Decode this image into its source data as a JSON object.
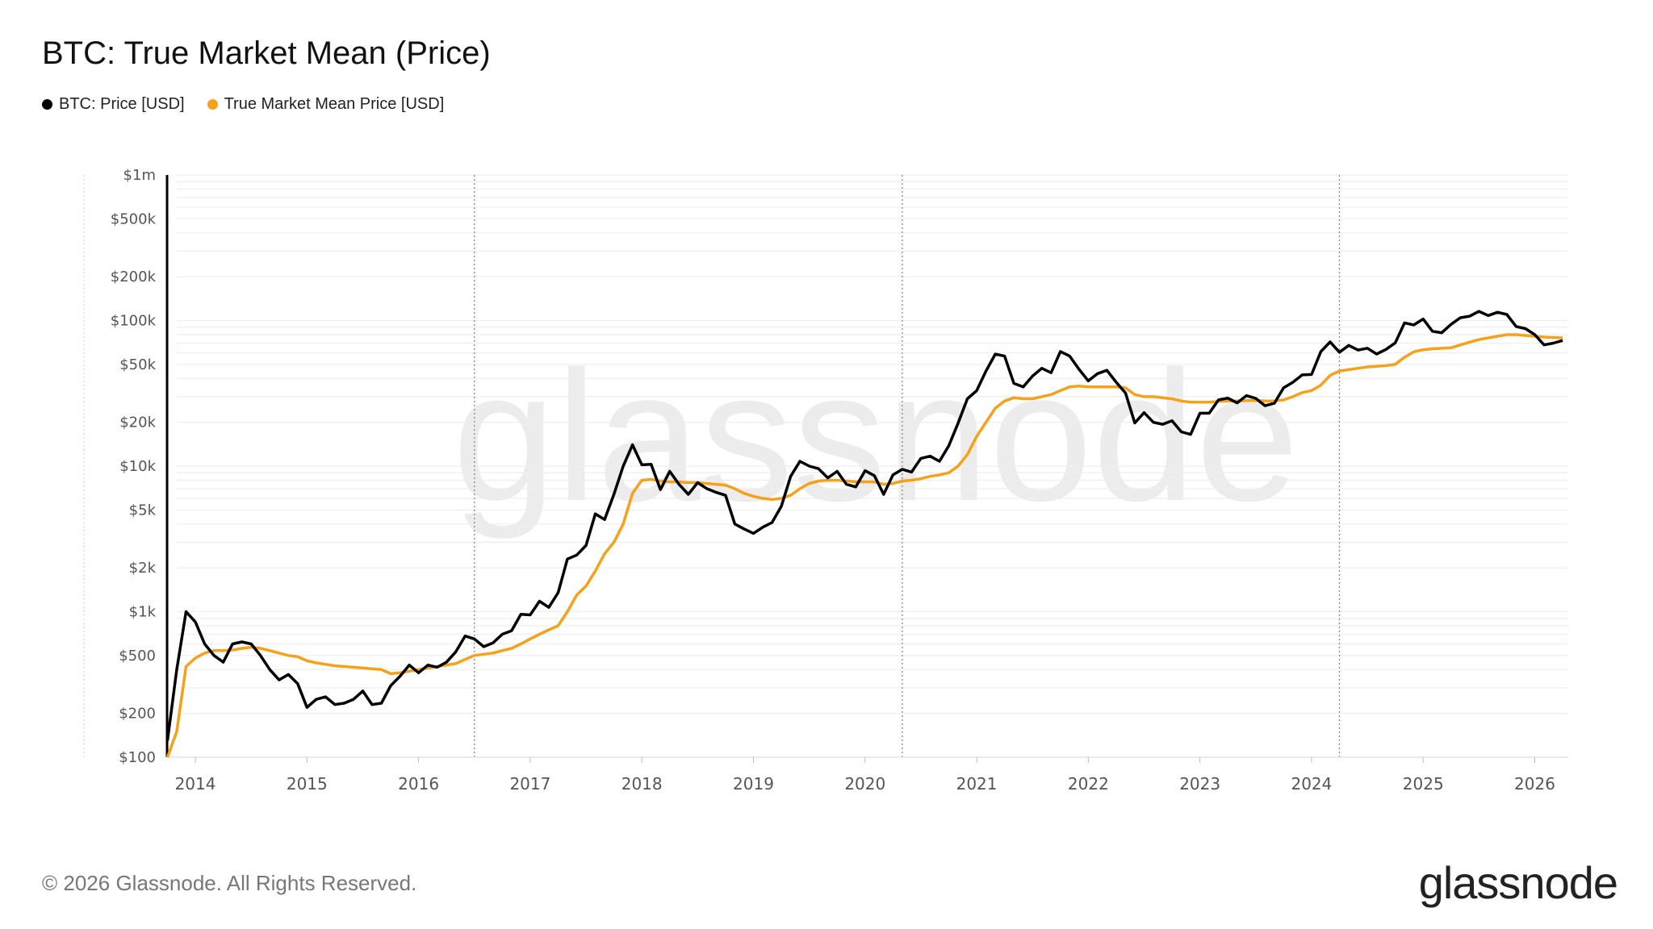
{
  "chart_data": {
    "type": "line",
    "title": "BTC: True Market Mean (Price)",
    "yscale": "log",
    "ylim": [
      100,
      1000000
    ],
    "xlim": [
      "2013-09",
      "2026-04"
    ],
    "grid": true,
    "legend_placement": "top-left",
    "y_ticks": [
      {
        "v": 1000000,
        "label": "$1m"
      },
      {
        "v": 500000,
        "label": "$500k"
      },
      {
        "v": 200000,
        "label": "$200k"
      },
      {
        "v": 100000,
        "label": "$100k"
      },
      {
        "v": 50000,
        "label": "$50k"
      },
      {
        "v": 20000,
        "label": "$20k"
      },
      {
        "v": 10000,
        "label": "$10k"
      },
      {
        "v": 5000,
        "label": "$5k"
      },
      {
        "v": 2000,
        "label": "$2k"
      },
      {
        "v": 1000,
        "label": "$1k"
      },
      {
        "v": 500,
        "label": "$500"
      },
      {
        "v": 200,
        "label": "$200"
      },
      {
        "v": 100,
        "label": "$100"
      }
    ],
    "x_ticks": [
      "2014",
      "2015",
      "2016",
      "2017",
      "2018",
      "2019",
      "2020",
      "2021",
      "2022",
      "2023",
      "2024",
      "2025",
      "2026"
    ],
    "vertical_markers": [
      "2016-07",
      "2020-05",
      "2024-04"
    ],
    "x": [
      "2013-10",
      "2013-11",
      "2013-12",
      "2014-01",
      "2014-02",
      "2014-03",
      "2014-04",
      "2014-05",
      "2014-06",
      "2014-07",
      "2014-08",
      "2014-09",
      "2014-10",
      "2014-11",
      "2014-12",
      "2015-01",
      "2015-02",
      "2015-03",
      "2015-04",
      "2015-05",
      "2015-06",
      "2015-07",
      "2015-08",
      "2015-09",
      "2015-10",
      "2015-11",
      "2015-12",
      "2016-01",
      "2016-02",
      "2016-03",
      "2016-04",
      "2016-05",
      "2016-06",
      "2016-07",
      "2016-08",
      "2016-09",
      "2016-10",
      "2016-11",
      "2016-12",
      "2017-01",
      "2017-02",
      "2017-03",
      "2017-04",
      "2017-05",
      "2017-06",
      "2017-07",
      "2017-08",
      "2017-09",
      "2017-10",
      "2017-11",
      "2017-12",
      "2018-01",
      "2018-02",
      "2018-03",
      "2018-04",
      "2018-05",
      "2018-06",
      "2018-07",
      "2018-08",
      "2018-09",
      "2018-10",
      "2018-11",
      "2018-12",
      "2019-01",
      "2019-02",
      "2019-03",
      "2019-04",
      "2019-05",
      "2019-06",
      "2019-07",
      "2019-08",
      "2019-09",
      "2019-10",
      "2019-11",
      "2019-12",
      "2020-01",
      "2020-02",
      "2020-03",
      "2020-04",
      "2020-05",
      "2020-06",
      "2020-07",
      "2020-08",
      "2020-09",
      "2020-10",
      "2020-11",
      "2020-12",
      "2021-01",
      "2021-02",
      "2021-03",
      "2021-04",
      "2021-05",
      "2021-06",
      "2021-07",
      "2021-08",
      "2021-09",
      "2021-10",
      "2021-11",
      "2021-12",
      "2022-01",
      "2022-02",
      "2022-03",
      "2022-04",
      "2022-05",
      "2022-06",
      "2022-07",
      "2022-08",
      "2022-09",
      "2022-10",
      "2022-11",
      "2022-12",
      "2023-01",
      "2023-02",
      "2023-03",
      "2023-04",
      "2023-05",
      "2023-06",
      "2023-07",
      "2023-08",
      "2023-09",
      "2023-10",
      "2023-11",
      "2023-12",
      "2024-01",
      "2024-02",
      "2024-03",
      "2024-04",
      "2024-05",
      "2024-06",
      "2024-07",
      "2024-08",
      "2024-09",
      "2024-10",
      "2024-11",
      "2024-12",
      "2025-01",
      "2025-02",
      "2025-03",
      "2025-04",
      "2025-05",
      "2025-06",
      "2025-07",
      "2025-08",
      "2025-09",
      "2025-10",
      "2025-11",
      "2025-12",
      "2026-01",
      "2026-02",
      "2026-03",
      "2026-04"
    ],
    "series": [
      {
        "name": "BTC: Price [USD]",
        "color": "#000000",
        "values": [
          130,
          400,
          1000,
          850,
          600,
          500,
          450,
          600,
          620,
          600,
          500,
          400,
          340,
          370,
          320,
          220,
          250,
          260,
          230,
          235,
          250,
          285,
          230,
          235,
          310,
          360,
          430,
          380,
          430,
          415,
          450,
          530,
          680,
          650,
          575,
          610,
          700,
          740,
          960,
          950,
          1180,
          1070,
          1350,
          2300,
          2450,
          2850,
          4700,
          4300,
          6400,
          10000,
          14000,
          10200,
          10300,
          6900,
          9200,
          7500,
          6400,
          7700,
          7000,
          6600,
          6300,
          4000,
          3700,
          3450,
          3800,
          4100,
          5300,
          8500,
          10800,
          10000,
          9600,
          8300,
          9200,
          7500,
          7200,
          9300,
          8600,
          6400,
          8700,
          9500,
          9100,
          11300,
          11700,
          10800,
          13800,
          19700,
          29000,
          33000,
          45000,
          58800,
          57000,
          37000,
          35000,
          41500,
          47000,
          43800,
          61300,
          57000,
          46300,
          38500,
          43200,
          45500,
          37700,
          31800,
          19800,
          23300,
          20000,
          19400,
          20500,
          17200,
          16500,
          23100,
          23100,
          28500,
          29300,
          27200,
          30500,
          29200,
          26000,
          27000,
          34500,
          37700,
          42300,
          42600,
          61200,
          71300,
          60600,
          67500,
          62700,
          64600,
          58900,
          63300,
          70200,
          96400,
          93400,
          102400,
          84400,
          82500,
          94200,
          104600,
          107100,
          115700,
          108200,
          114000,
          110000,
          91000,
          88000,
          80000,
          68000,
          70000,
          73000
        ]
      },
      {
        "name": "True Market Mean Price [USD]",
        "color": "#f7a11a",
        "values": [
          100,
          150,
          420,
          480,
          520,
          540,
          540,
          545,
          560,
          570,
          560,
          540,
          520,
          500,
          490,
          460,
          445,
          435,
          425,
          420,
          415,
          410,
          405,
          400,
          375,
          380,
          390,
          400,
          410,
          420,
          430,
          440,
          470,
          500,
          510,
          520,
          540,
          560,
          600,
          650,
          700,
          750,
          800,
          1000,
          1300,
          1500,
          1900,
          2500,
          3000,
          4000,
          6500,
          8000,
          8100,
          7900,
          7800,
          7800,
          7700,
          7700,
          7600,
          7500,
          7400,
          7000,
          6500,
          6200,
          6000,
          5900,
          6000,
          6300,
          7000,
          7600,
          7900,
          8000,
          8000,
          7900,
          7800,
          7800,
          7800,
          7500,
          7600,
          7900,
          8000,
          8200,
          8500,
          8700,
          9000,
          10000,
          12000,
          16000,
          20000,
          25000,
          28000,
          29500,
          29000,
          29000,
          30000,
          31000,
          33000,
          35000,
          35500,
          35000,
          35000,
          35000,
          35000,
          34500,
          31000,
          30000,
          30000,
          29500,
          29000,
          28000,
          27500,
          27500,
          27500,
          27800,
          28000,
          28000,
          28200,
          28300,
          28000,
          28000,
          28500,
          30000,
          32000,
          33000,
          36000,
          42000,
          45000,
          46000,
          47000,
          48000,
          48500,
          49000,
          50000,
          56000,
          61000,
          63000,
          64000,
          64500,
          65000,
          68000,
          71000,
          74000,
          76000,
          78000,
          80000,
          80000,
          79000,
          78000,
          77000,
          76500,
          76000
        ]
      }
    ]
  },
  "watermark": "glassnode",
  "footer": {
    "copyright": "© 2026 Glassnode. All Rights Reserved.",
    "logo": "glassnode"
  }
}
